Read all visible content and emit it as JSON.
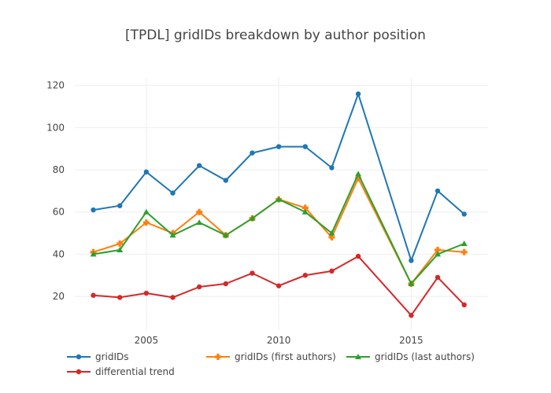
{
  "chart_data": {
    "type": "line",
    "title": "[TPDL] gridIDs breakdown by author position",
    "xlabel": "",
    "ylabel": "",
    "x": [
      2003,
      2004,
      2005,
      2006,
      2007,
      2008,
      2009,
      2010,
      2011,
      2012,
      2013,
      2015,
      2016,
      2017
    ],
    "xlim": [
      2002.3,
      2017.9
    ],
    "ylim": [
      4,
      124
    ],
    "xticks": [
      2005,
      2010,
      2015
    ],
    "xtick_labels": [
      "2005",
      "2010",
      "2015"
    ],
    "yticks": [
      20,
      40,
      60,
      80,
      100,
      120
    ],
    "ytick_labels": [
      "20",
      "40",
      "60",
      "80",
      "100",
      "120"
    ],
    "grid": true,
    "legend_position": "bottom",
    "series": [
      {
        "name": "gridIDs",
        "color": "#1f77b4",
        "marker": "circle",
        "values": [
          61,
          63,
          79,
          69,
          82,
          75,
          88,
          91,
          91,
          81,
          116,
          37,
          70,
          59
        ]
      },
      {
        "name": "gridIDs (first authors)",
        "color": "#ff7f0e",
        "marker": "cross",
        "values": [
          41,
          45,
          55,
          50,
          60,
          49,
          57,
          66,
          62,
          48,
          76,
          26,
          42,
          41
        ]
      },
      {
        "name": "gridIDs (last authors)",
        "color": "#2ca02c",
        "marker": "triangle",
        "values": [
          40,
          42,
          60,
          49,
          55,
          49,
          57,
          66,
          60,
          50,
          78,
          26,
          40,
          45
        ]
      },
      {
        "name": "differential trend",
        "color": "#d62728",
        "marker": "circle",
        "values": [
          20.5,
          19.5,
          21.5,
          19.5,
          24.5,
          26,
          31,
          25,
          30,
          32,
          39,
          11,
          29,
          16
        ]
      }
    ]
  }
}
